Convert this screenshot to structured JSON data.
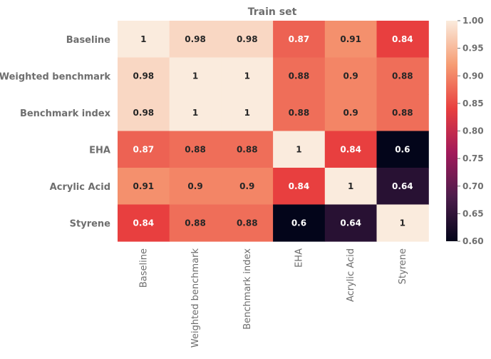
{
  "chart_data": {
    "type": "heatmap",
    "title": "Train set",
    "rows": [
      "Baseline",
      "Weighted benchmark",
      "Benchmark index",
      "EHA",
      "Acrylic Acid",
      "Styrene"
    ],
    "cols": [
      "Baseline",
      "Weighted benchmark",
      "Benchmark index",
      "EHA",
      "Acrylic Acid",
      "Styrene"
    ],
    "values": [
      [
        1,
        0.98,
        0.98,
        0.87,
        0.91,
        0.84
      ],
      [
        0.98,
        1,
        1,
        0.88,
        0.9,
        0.88
      ],
      [
        0.98,
        1,
        1,
        0.88,
        0.9,
        0.88
      ],
      [
        0.87,
        0.88,
        0.88,
        1,
        0.84,
        0.6
      ],
      [
        0.91,
        0.9,
        0.9,
        0.84,
        1,
        0.64
      ],
      [
        0.84,
        0.88,
        0.88,
        0.6,
        0.64,
        1
      ]
    ],
    "labels": [
      [
        "1",
        "0.98",
        "0.98",
        "0.87",
        "0.91",
        "0.84"
      ],
      [
        "0.98",
        "1",
        "1",
        "0.88",
        "0.9",
        "0.88"
      ],
      [
        "0.98",
        "1",
        "1",
        "0.88",
        "0.9",
        "0.88"
      ],
      [
        "0.87",
        "0.88",
        "0.88",
        "1",
        "0.84",
        "0.6"
      ],
      [
        "0.91",
        "0.9",
        "0.9",
        "0.84",
        "1",
        "0.64"
      ],
      [
        "0.84",
        "0.88",
        "0.88",
        "0.6",
        "0.64",
        "1"
      ]
    ],
    "colorbar": {
      "range": [
        0.6,
        1.0
      ],
      "ticks": [
        1.0,
        0.95,
        0.9,
        0.85,
        0.8,
        0.75,
        0.7,
        0.65,
        0.6
      ],
      "tick_labels": [
        "1.00",
        "0.95",
        "0.90",
        "0.85",
        "0.80",
        "0.75",
        "0.70",
        "0.65",
        "0.60"
      ]
    },
    "colormap": "rocket",
    "colormap_stops": [
      "#03051a",
      "#4c1d4b",
      "#a11a5b",
      "#e83f3f",
      "#f69c73",
      "#faebdd"
    ]
  }
}
